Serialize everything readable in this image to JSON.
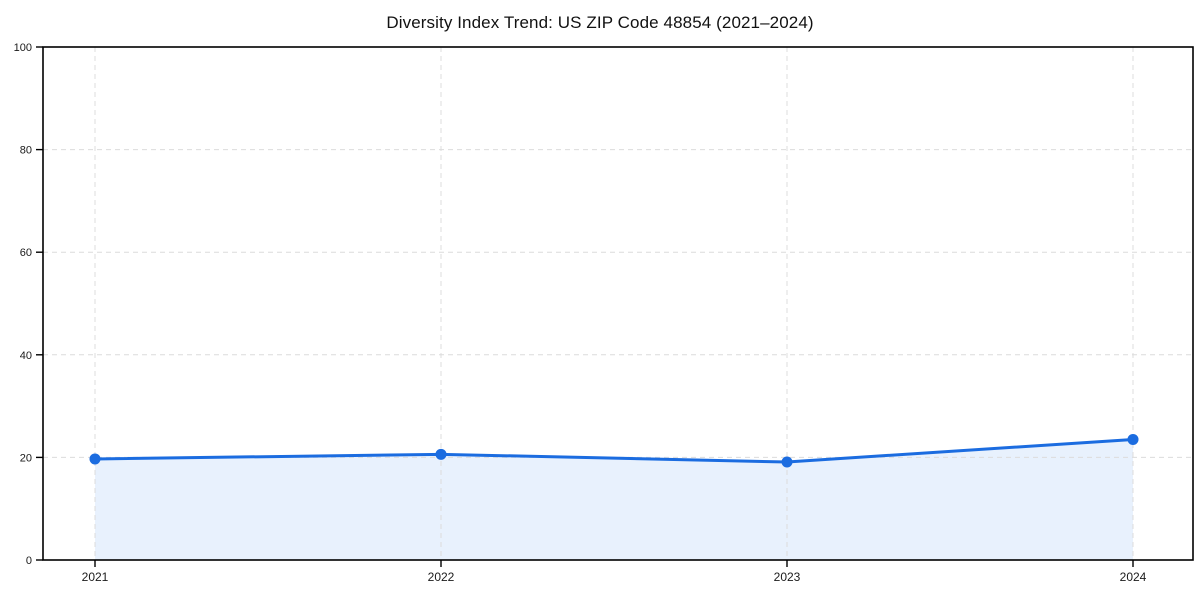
{
  "chart_data": {
    "type": "line",
    "title": "Diversity Index Trend: US ZIP Code 48854 (2021–2024)",
    "xlabel": "",
    "ylabel": "",
    "categories": [
      "2021",
      "2022",
      "2023",
      "2024"
    ],
    "series": [
      {
        "name": "Diversity Index",
        "values": [
          19.7,
          20.6,
          19.1,
          23.5
        ]
      }
    ],
    "ylim": [
      0,
      100
    ],
    "yticks": [
      0,
      20,
      40,
      60,
      80,
      100
    ],
    "grid": true,
    "grid_style": "dashed",
    "legend": false,
    "area_fill": true,
    "marker": "circle",
    "colors": {
      "line": "#1b6ce0",
      "area": "#e8f1fd",
      "grid": "#dcdcdc",
      "axis": "#000000",
      "tick_text": "#1a1a1a",
      "title_text": "#111111",
      "background": "#ffffff"
    }
  }
}
